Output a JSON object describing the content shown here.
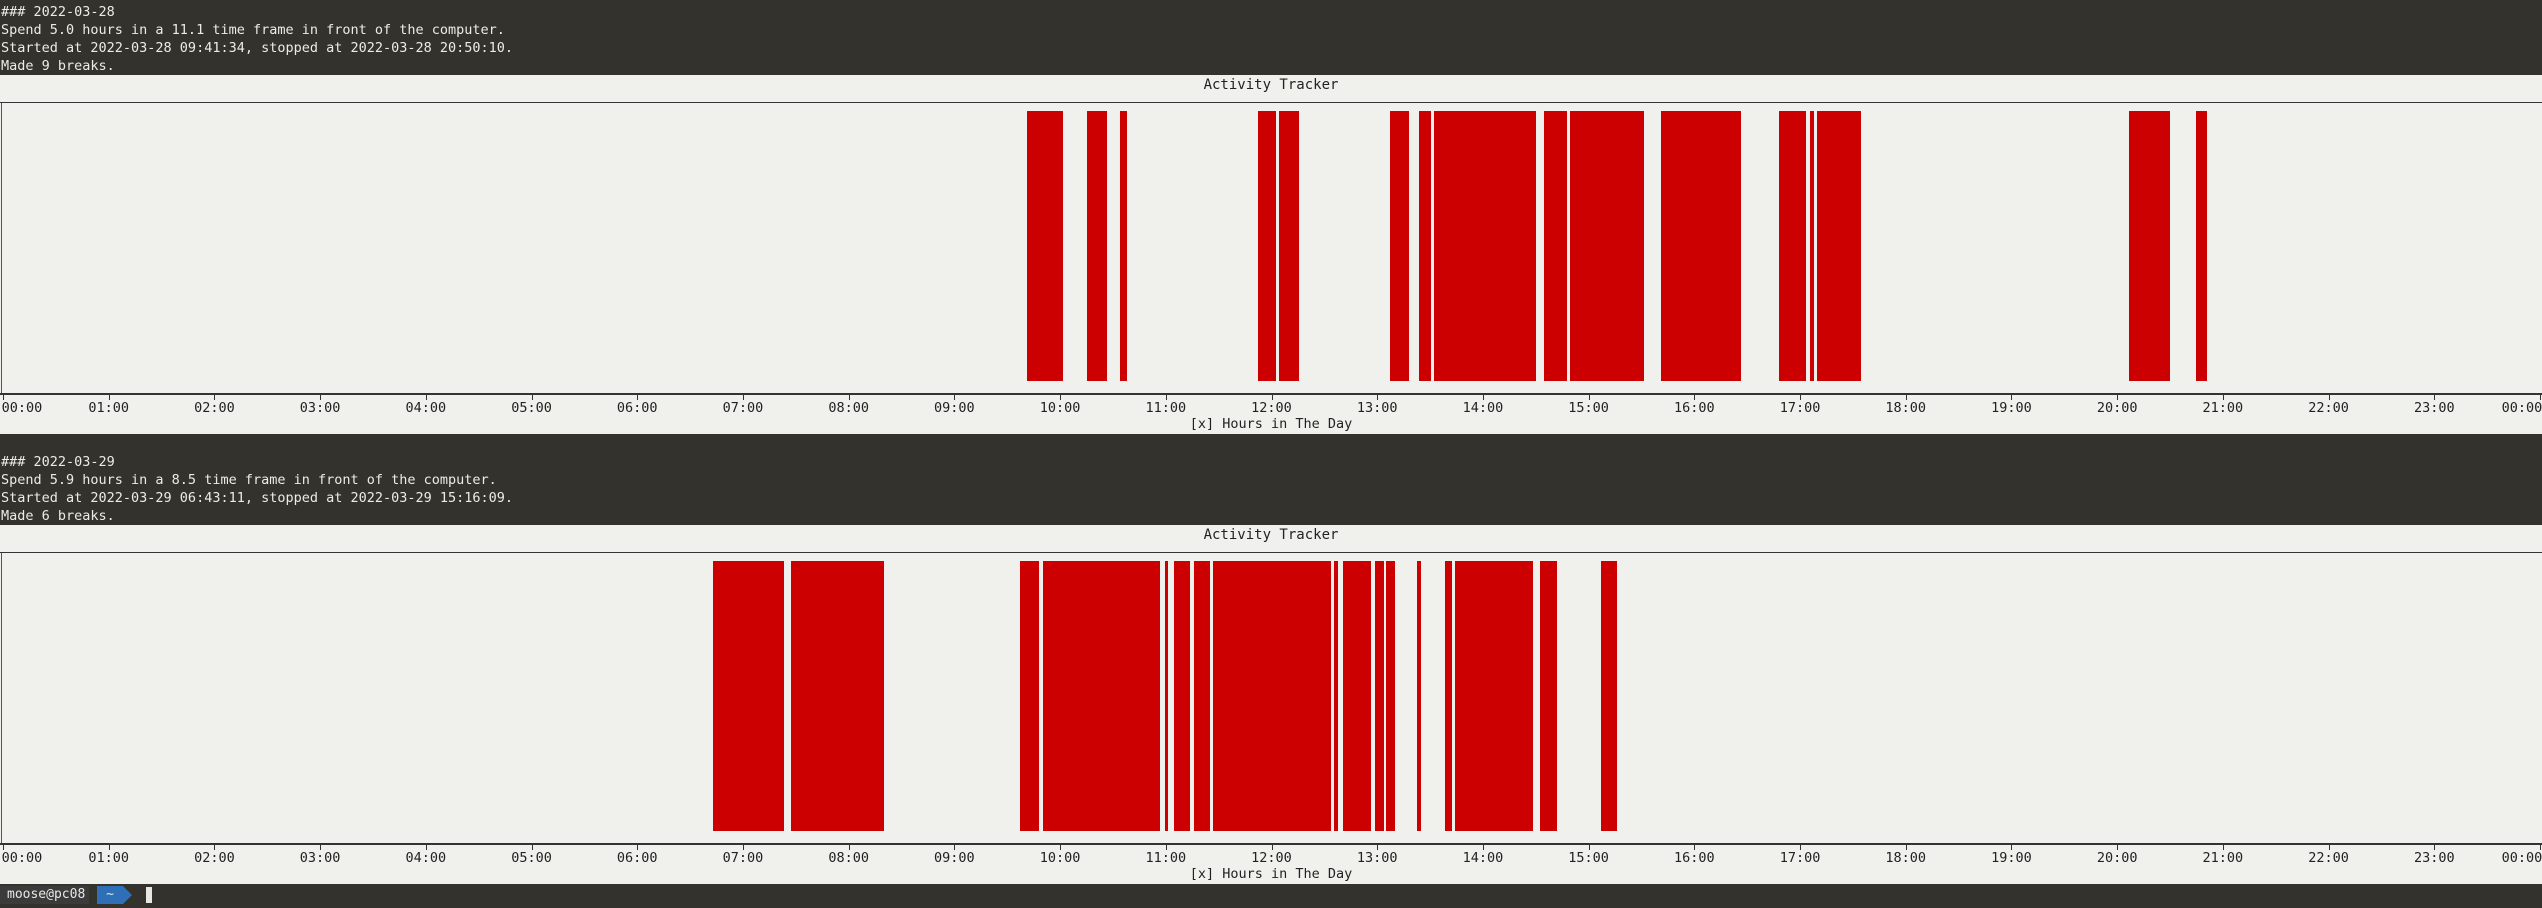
{
  "ticks": [
    "00:00",
    "01:00",
    "02:00",
    "03:00",
    "04:00",
    "05:00",
    "06:00",
    "07:00",
    "08:00",
    "09:00",
    "10:00",
    "11:00",
    "12:00",
    "13:00",
    "14:00",
    "15:00",
    "16:00",
    "17:00",
    "18:00",
    "19:00",
    "20:00",
    "21:00",
    "22:00",
    "23:00",
    "00:00"
  ],
  "days": [
    {
      "heading": "### 2022-03-28",
      "summary": "Spend 5.0 hours in a 11.1 time frame in front of the computer.",
      "started": "Started at 2022-03-28 09:41:34, stopped at 2022-03-28 20:50:10.",
      "breaks": "Made 9 breaks.",
      "chart_title": "Activity Tracker",
      "xlabel": "[x] Hours in The Day",
      "segments": [
        [
          9.69,
          10.03
        ],
        [
          10.25,
          10.44
        ],
        [
          10.57,
          10.63
        ],
        [
          11.87,
          12.04
        ],
        [
          12.07,
          12.26
        ],
        [
          13.12,
          13.3
        ],
        [
          13.4,
          13.51
        ],
        [
          13.54,
          14.5
        ],
        [
          14.58,
          14.8
        ],
        [
          14.82,
          15.52
        ],
        [
          15.68,
          16.44
        ],
        [
          16.8,
          17.06
        ],
        [
          17.09,
          17.13
        ],
        [
          17.16,
          17.58
        ],
        [
          20.11,
          20.5
        ],
        [
          20.75,
          20.85
        ]
      ]
    },
    {
      "heading": "### 2022-03-29",
      "summary": "Spend 5.9 hours in a 8.5 time frame in front of the computer.",
      "started": "Started at 2022-03-29 06:43:11, stopped at 2022-03-29 15:16:09.",
      "breaks": "Made 6 breaks.",
      "chart_title": "Activity Tracker",
      "xlabel": "[x] Hours in The Day",
      "segments": [
        [
          6.72,
          7.39
        ],
        [
          7.45,
          8.33
        ],
        [
          9.62,
          9.8
        ],
        [
          9.84,
          10.95
        ],
        [
          10.99,
          11.02
        ],
        [
          11.08,
          11.23
        ],
        [
          11.27,
          11.42
        ],
        [
          11.45,
          12.56
        ],
        [
          12.59,
          12.63
        ],
        [
          12.68,
          12.94
        ],
        [
          12.98,
          13.06
        ],
        [
          13.08,
          13.17
        ],
        [
          13.38,
          13.41
        ],
        [
          13.64,
          13.71
        ],
        [
          13.74,
          14.47
        ],
        [
          14.54,
          14.7
        ],
        [
          15.12,
          15.27
        ]
      ]
    }
  ],
  "status": {
    "user": "moose@pc08",
    "cwd": "~"
  },
  "chart_data": [
    {
      "type": "bar",
      "title": "Activity Tracker",
      "xlabel": "[x] Hours in The Day",
      "ylabel": "",
      "xlim": [
        0,
        24
      ],
      "active_intervals_hours": [
        [
          9.69,
          10.03
        ],
        [
          10.25,
          10.44
        ],
        [
          10.57,
          10.63
        ],
        [
          11.87,
          12.04
        ],
        [
          12.07,
          12.26
        ],
        [
          13.12,
          13.3
        ],
        [
          13.4,
          13.51
        ],
        [
          13.54,
          14.5
        ],
        [
          14.58,
          14.8
        ],
        [
          14.82,
          15.52
        ],
        [
          15.68,
          16.44
        ],
        [
          16.8,
          17.06
        ],
        [
          17.09,
          17.13
        ],
        [
          17.16,
          17.58
        ],
        [
          20.11,
          20.5
        ],
        [
          20.75,
          20.85
        ]
      ],
      "grid": false
    },
    {
      "type": "bar",
      "title": "Activity Tracker",
      "xlabel": "[x] Hours in The Day",
      "ylabel": "",
      "xlim": [
        0,
        24
      ],
      "active_intervals_hours": [
        [
          6.72,
          7.39
        ],
        [
          7.45,
          8.33
        ],
        [
          9.62,
          9.8
        ],
        [
          9.84,
          10.95
        ],
        [
          10.99,
          11.02
        ],
        [
          11.08,
          11.23
        ],
        [
          11.27,
          11.42
        ],
        [
          11.45,
          12.56
        ],
        [
          12.59,
          12.63
        ],
        [
          12.68,
          12.94
        ],
        [
          12.98,
          13.06
        ],
        [
          13.08,
          13.17
        ],
        [
          13.38,
          13.41
        ],
        [
          13.64,
          13.71
        ],
        [
          13.74,
          14.47
        ],
        [
          14.54,
          14.7
        ],
        [
          15.12,
          15.27
        ]
      ],
      "grid": false
    }
  ],
  "colors": {
    "bar": "#cc0000",
    "terminal_bg": "#33322d",
    "chart_bg": "#f0f0ec"
  }
}
